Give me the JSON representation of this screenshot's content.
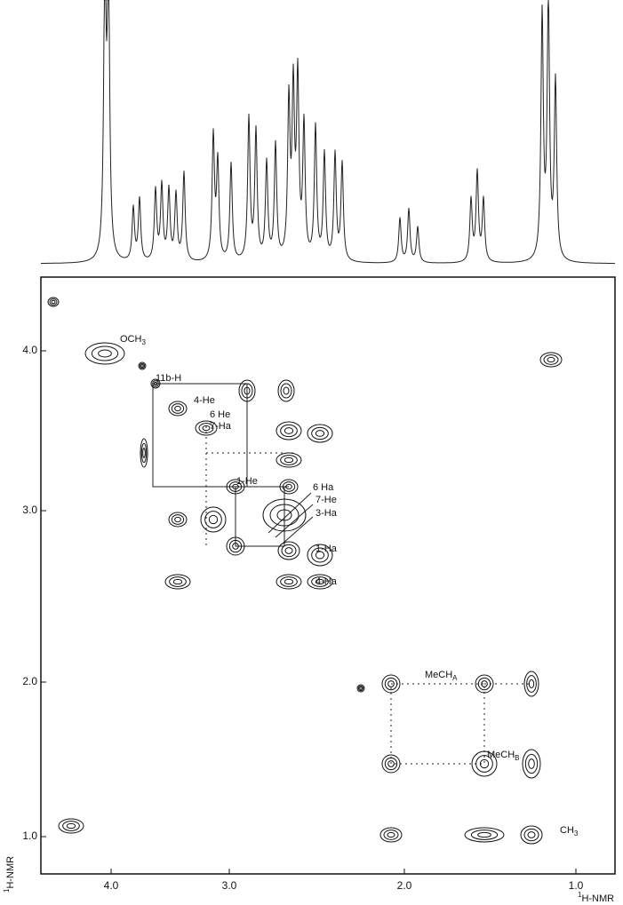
{
  "figure": {
    "x_axis": {
      "label": {
        "sup": "1",
        "text": "H-NMR"
      },
      "ticks": [
        "4.0",
        "3.0",
        "2.0",
        "1.0"
      ]
    },
    "y_axis": {
      "label": {
        "sup": "1",
        "text": "H-NMR"
      },
      "ticks": [
        "4.0",
        "3.0",
        "2.0",
        "1.0"
      ]
    },
    "peak_labels": [
      {
        "text": "OCH",
        "sub": "3"
      },
      {
        "text": "11b-H",
        "sub": ""
      },
      {
        "text": "4-He",
        "sub": ""
      },
      {
        "text": "6 He",
        "sub": ""
      },
      {
        "text": "7-Ha",
        "sub": ""
      },
      {
        "text": "1-He",
        "sub": ""
      },
      {
        "text": "6 Ha",
        "sub": ""
      },
      {
        "text": "7-He",
        "sub": ""
      },
      {
        "text": "3-Ha",
        "sub": ""
      },
      {
        "text": "1-Ha",
        "sub": ""
      },
      {
        "text": "4-Ha",
        "sub": ""
      },
      {
        "text": "MeCH",
        "sub": "A"
      },
      {
        "text": "MeCH",
        "sub": "B"
      },
      {
        "text": "CH",
        "sub": "3"
      }
    ]
  }
}
